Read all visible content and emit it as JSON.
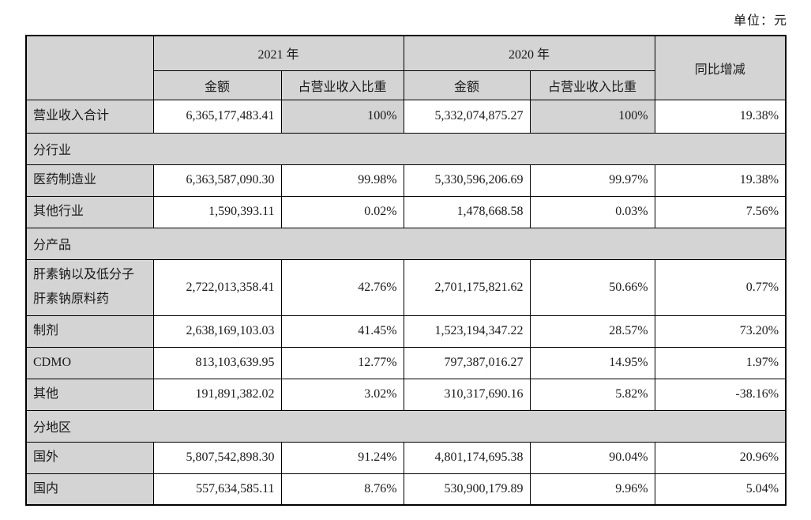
{
  "unit_label": "单位：元",
  "colors": {
    "shaded_bg": "#d4d4d4",
    "border": "#000000",
    "cell_bg": "#ffffff"
  },
  "table": {
    "header": {
      "year_2021": "2021 年",
      "year_2020": "2020 年",
      "amount_label_2021": "金额",
      "share_label_2021": "占营业收入比重",
      "amount_label_2020": "金额",
      "share_label_2020": "占营业收入比重",
      "yoy_label": "同比增减"
    },
    "rows": [
      {
        "type": "data",
        "label": "营业收入合计",
        "amount_2021": "6,365,177,483.41",
        "share_2021": "100%",
        "amount_2020": "5,332,074,875.27",
        "share_2020": "100%",
        "yoy": "19.38%",
        "share_shaded": true,
        "first": true
      },
      {
        "type": "section",
        "label": "分行业"
      },
      {
        "type": "data",
        "label": "医药制造业",
        "amount_2021": "6,363,587,090.30",
        "share_2021": "99.98%",
        "amount_2020": "5,330,596,206.69",
        "share_2020": "99.97%",
        "yoy": "19.38%"
      },
      {
        "type": "data",
        "label": "其他行业",
        "amount_2021": "1,590,393.11",
        "share_2021": "0.02%",
        "amount_2020": "1,478,668.58",
        "share_2020": "0.03%",
        "yoy": "7.56%"
      },
      {
        "type": "section",
        "label": "分产品"
      },
      {
        "type": "data",
        "label": "肝素钠以及低分子肝素钠原料药",
        "amount_2021": "2,722,013,358.41",
        "share_2021": "42.76%",
        "amount_2020": "2,701,175,821.62",
        "share_2020": "50.66%",
        "yoy": "0.77%",
        "tall": true
      },
      {
        "type": "data",
        "label": "制剂",
        "amount_2021": "2,638,169,103.03",
        "share_2021": "41.45%",
        "amount_2020": "1,523,194,347.22",
        "share_2020": "28.57%",
        "yoy": "73.20%"
      },
      {
        "type": "data",
        "label": "CDMO",
        "amount_2021": "813,103,639.95",
        "share_2021": "12.77%",
        "amount_2020": "797,387,016.27",
        "share_2020": "14.95%",
        "yoy": "1.97%"
      },
      {
        "type": "data",
        "label": "其他",
        "amount_2021": "191,891,382.02",
        "share_2021": "3.02%",
        "amount_2020": "310,317,690.16",
        "share_2020": "5.82%",
        "yoy": "-38.16%"
      },
      {
        "type": "section",
        "label": "分地区"
      },
      {
        "type": "data",
        "label": "国外",
        "amount_2021": "5,807,542,898.30",
        "share_2021": "91.24%",
        "amount_2020": "4,801,174,695.38",
        "share_2020": "90.04%",
        "yoy": "20.96%"
      },
      {
        "type": "data",
        "label": "国内",
        "amount_2021": "557,634,585.11",
        "share_2021": "8.76%",
        "amount_2020": "530,900,179.89",
        "share_2020": "9.96%",
        "yoy": "5.04%"
      }
    ]
  }
}
